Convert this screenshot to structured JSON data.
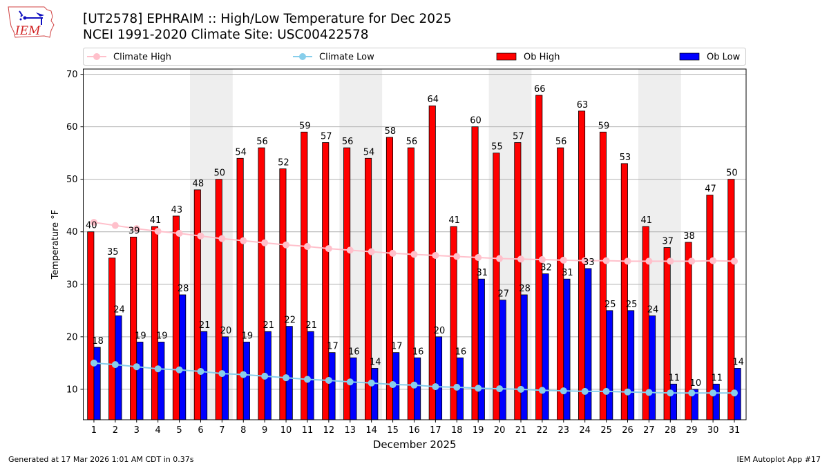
{
  "header": {
    "title_line1": "[UT2578] EPHRAIM :: High/Low Temperature for Dec 2025",
    "title_line2": "NCEI 1991-2020 Climate Site: USC00422578",
    "logo_text": "IEM",
    "logo_icon": "iowa-state-outline-weather-station-icon"
  },
  "footer": {
    "generated": "Generated at 17 Mar 2026 1:01 AM CDT in 0.37s",
    "app": "IEM Autoplot App #17"
  },
  "colors": {
    "ob_high": "#ff0000",
    "ob_low": "#0000ff",
    "climate_high": "#ffc0cb",
    "climate_low": "#87ceeb",
    "weekend_shade": "#eeeeee",
    "grid": "#b0b0b0"
  },
  "chart_data": {
    "type": "bar",
    "title": "[UT2578] EPHRAIM :: High/Low Temperature for Dec 2025",
    "subtitle": "NCEI 1991-2020 Climate Site: USC00422578",
    "xlabel": "December 2025",
    "ylabel": "Temperature °F",
    "xlim": [
      0.5,
      31.55
    ],
    "ylim": [
      4.2,
      71
    ],
    "yticks": [
      10,
      20,
      30,
      40,
      50,
      60,
      70
    ],
    "grid": true,
    "legend_placement": "top (above plot, 4 columns)",
    "shaded_days": [
      [
        6,
        7
      ],
      [
        13,
        14
      ],
      [
        20,
        21
      ],
      [
        27,
        28
      ]
    ],
    "categories": [
      1,
      2,
      3,
      4,
      5,
      6,
      7,
      8,
      9,
      10,
      11,
      12,
      13,
      14,
      15,
      16,
      17,
      18,
      19,
      20,
      21,
      22,
      23,
      24,
      25,
      26,
      27,
      28,
      29,
      30,
      31
    ],
    "series": [
      {
        "name": "Climate High",
        "kind": "line",
        "values": [
          41.8,
          41.2,
          40.6,
          40.1,
          39.7,
          39.2,
          38.7,
          38.3,
          37.9,
          37.5,
          37.2,
          36.8,
          36.5,
          36.2,
          35.9,
          35.7,
          35.5,
          35.3,
          35.1,
          34.9,
          34.8,
          34.7,
          34.6,
          34.5,
          34.5,
          34.4,
          34.4,
          34.4,
          34.4,
          34.5,
          34.4
        ]
      },
      {
        "name": "Climate Low",
        "kind": "line",
        "values": [
          15.0,
          14.7,
          14.3,
          13.9,
          13.7,
          13.4,
          13.0,
          12.8,
          12.5,
          12.2,
          11.9,
          11.7,
          11.4,
          11.2,
          10.9,
          10.8,
          10.5,
          10.4,
          10.2,
          10.1,
          10.0,
          9.8,
          9.7,
          9.6,
          9.6,
          9.5,
          9.4,
          9.3,
          9.3,
          9.3,
          9.3
        ]
      },
      {
        "name": "Ob High",
        "kind": "bar",
        "values": [
          40,
          35,
          39,
          41,
          43,
          48,
          50,
          54,
          56,
          52,
          59,
          57,
          56,
          54,
          58,
          56,
          64,
          41,
          60,
          55,
          57,
          66,
          56,
          63,
          59,
          53,
          41,
          37,
          38,
          47,
          50
        ]
      },
      {
        "name": "Ob Low",
        "kind": "bar",
        "values": [
          18,
          24,
          19,
          19,
          28,
          21,
          20,
          19,
          21,
          22,
          21,
          17,
          16,
          14,
          17,
          16,
          20,
          16,
          31,
          27,
          28,
          32,
          31,
          33,
          25,
          25,
          24,
          11,
          10,
          11,
          14
        ]
      }
    ]
  }
}
